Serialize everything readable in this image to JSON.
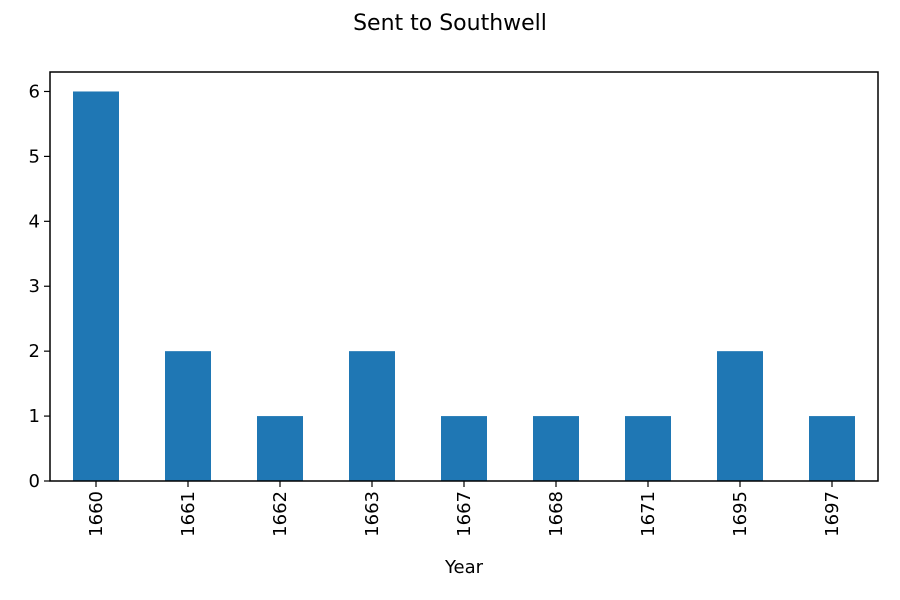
{
  "chart_data": {
    "type": "bar",
    "title": "Sent to Southwell",
    "xlabel": "Year",
    "ylabel": "",
    "categories": [
      "1660",
      "1661",
      "1662",
      "1663",
      "1667",
      "1668",
      "1671",
      "1695",
      "1697"
    ],
    "values": [
      6,
      2,
      1,
      2,
      1,
      1,
      1,
      2,
      1
    ],
    "ylim": [
      0,
      6.3
    ],
    "yticks": [
      0,
      1,
      2,
      3,
      4,
      5,
      6
    ],
    "grid": false,
    "legend": "none",
    "bar_color": "#1f77b4"
  }
}
